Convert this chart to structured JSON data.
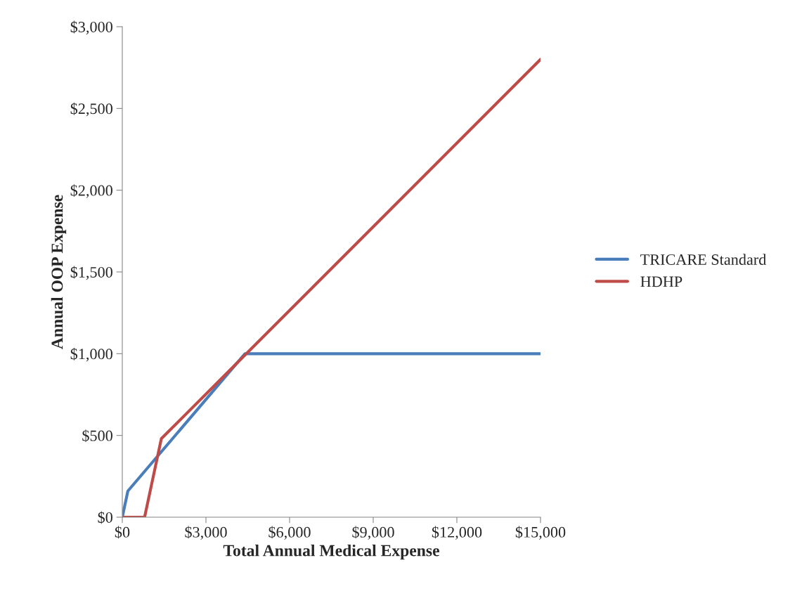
{
  "chart_data": {
    "type": "line",
    "xlabel": "Total Annual Medical Expense",
    "ylabel": "Annual OOP Expense",
    "series": [
      {
        "name": "TRICARE Standard",
        "color": "#4a7ebb",
        "x": [
          0,
          200,
          4400,
          15000
        ],
        "values": [
          0,
          160,
          1000,
          1000
        ]
      },
      {
        "name": "HDHP",
        "color": "#be4b48",
        "x": [
          0,
          800,
          1400,
          15000
        ],
        "values": [
          0,
          0,
          480,
          2800
        ]
      }
    ],
    "xlim": [
      0,
      15000
    ],
    "ylim": [
      0,
      3000
    ],
    "xticks": [
      {
        "value": 0,
        "label": "$0"
      },
      {
        "value": 3000,
        "label": "$3,000"
      },
      {
        "value": 6000,
        "label": "$6,000"
      },
      {
        "value": 9000,
        "label": "$9,000"
      },
      {
        "value": 12000,
        "label": "$12,000"
      },
      {
        "value": 15000,
        "label": "$15,000"
      }
    ],
    "yticks": [
      {
        "value": 0,
        "label": "$0"
      },
      {
        "value": 500,
        "label": "$500"
      },
      {
        "value": 1000,
        "label": "$1,000"
      },
      {
        "value": 1500,
        "label": "$1,500"
      },
      {
        "value": 2000,
        "label": "$2,000"
      },
      {
        "value": 2500,
        "label": "$2,500"
      },
      {
        "value": 3000,
        "label": "$3,000"
      }
    ],
    "grid": false,
    "legend": "right",
    "marker": "none",
    "line_style": "solid"
  }
}
